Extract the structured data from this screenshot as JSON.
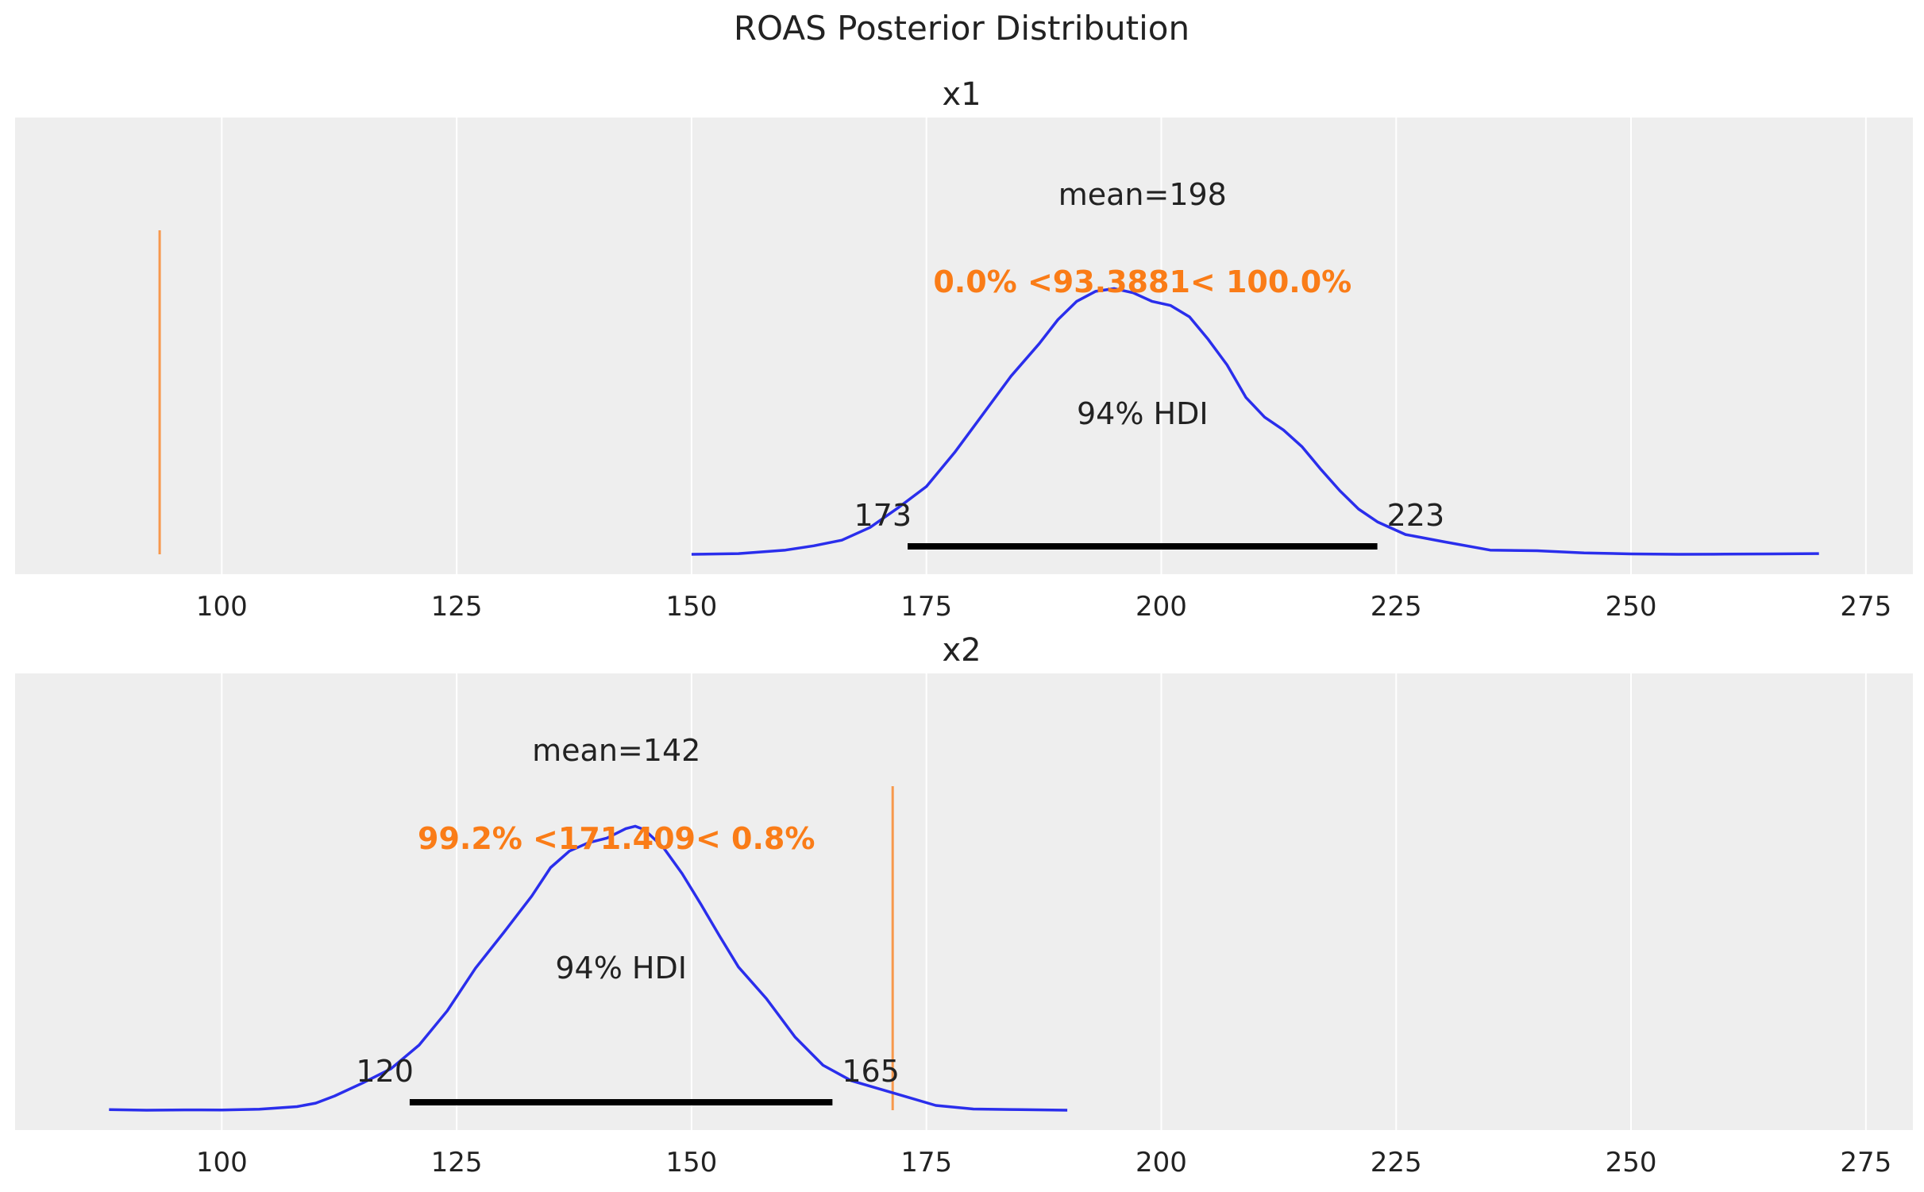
{
  "figure": {
    "title": "ROAS Posterior Distribution"
  },
  "colors": {
    "background": "#ffffff",
    "panel": "#eeeeee",
    "grid": "#ffffff",
    "density": "#2a2eec",
    "reference": "#fa7c17",
    "hdi": "#000000",
    "text": "#222222"
  },
  "chart_data": [
    {
      "type": "line",
      "title": "x1",
      "xlabel": "",
      "ylabel": "",
      "xlim": [
        78,
        280
      ],
      "xticks": [
        100,
        125,
        150,
        175,
        200,
        225,
        250,
        275
      ],
      "grid": true,
      "y_axis_visible": false,
      "series": [
        {
          "name": "posterior density",
          "x": [
            150,
            155,
            160,
            163,
            166,
            169,
            172,
            175,
            178,
            181,
            184,
            187,
            189,
            191,
            193,
            195,
            197,
            199,
            201,
            203,
            205,
            207,
            209,
            211,
            213,
            215,
            217,
            219,
            221,
            223,
            226,
            230,
            235,
            240,
            245,
            250,
            255,
            260,
            265,
            270
          ],
          "y": [
            0.0,
            0.005,
            0.03,
            0.06,
            0.1,
            0.19,
            0.33,
            0.48,
            0.72,
            0.99,
            1.26,
            1.49,
            1.66,
            1.79,
            1.86,
            1.88,
            1.85,
            1.79,
            1.76,
            1.68,
            1.52,
            1.34,
            1.11,
            0.97,
            0.88,
            0.76,
            0.6,
            0.45,
            0.32,
            0.23,
            0.14,
            0.09,
            0.03,
            0.025,
            0.01,
            0.003,
            0.0,
            0.001,
            0.003,
            0.005
          ]
        }
      ],
      "mean": 198,
      "mean_label": "mean=198",
      "reference_value": 93.3881,
      "reference_label": "0.0% <93.3881< 100.0%",
      "hdi_prob_label": "94% HDI",
      "hdi": [
        173,
        223
      ],
      "hdi_labels": [
        "173",
        "223"
      ]
    },
    {
      "type": "line",
      "title": "x2",
      "xlabel": "",
      "ylabel": "",
      "xlim": [
        78,
        280
      ],
      "xticks": [
        100,
        125,
        150,
        175,
        200,
        225,
        250,
        275
      ],
      "grid": true,
      "y_axis_visible": false,
      "series": [
        {
          "name": "posterior density",
          "x": [
            88,
            92,
            96,
            100,
            104,
            108,
            110,
            112,
            115,
            118,
            121,
            124,
            127,
            130,
            133,
            135,
            137,
            139,
            141,
            143,
            144,
            145,
            147,
            149,
            151,
            153,
            155,
            158,
            161,
            164,
            167,
            170,
            173,
            176,
            180,
            185,
            190
          ],
          "y": [
            0.005,
            0.0,
            0.003,
            0.002,
            0.008,
            0.03,
            0.06,
            0.12,
            0.23,
            0.35,
            0.55,
            0.84,
            1.2,
            1.5,
            1.81,
            2.05,
            2.19,
            2.26,
            2.3,
            2.38,
            2.4,
            2.37,
            2.22,
            2.0,
            1.74,
            1.47,
            1.21,
            0.94,
            0.62,
            0.38,
            0.25,
            0.18,
            0.11,
            0.04,
            0.01,
            0.005,
            0.0
          ]
        }
      ],
      "mean": 142,
      "mean_label": "mean=142",
      "reference_value": 171.409,
      "reference_label": "99.2% <171.409< 0.8%",
      "hdi_prob_label": "94% HDI",
      "hdi": [
        120,
        165
      ],
      "hdi_labels": [
        "120",
        "165"
      ]
    }
  ]
}
